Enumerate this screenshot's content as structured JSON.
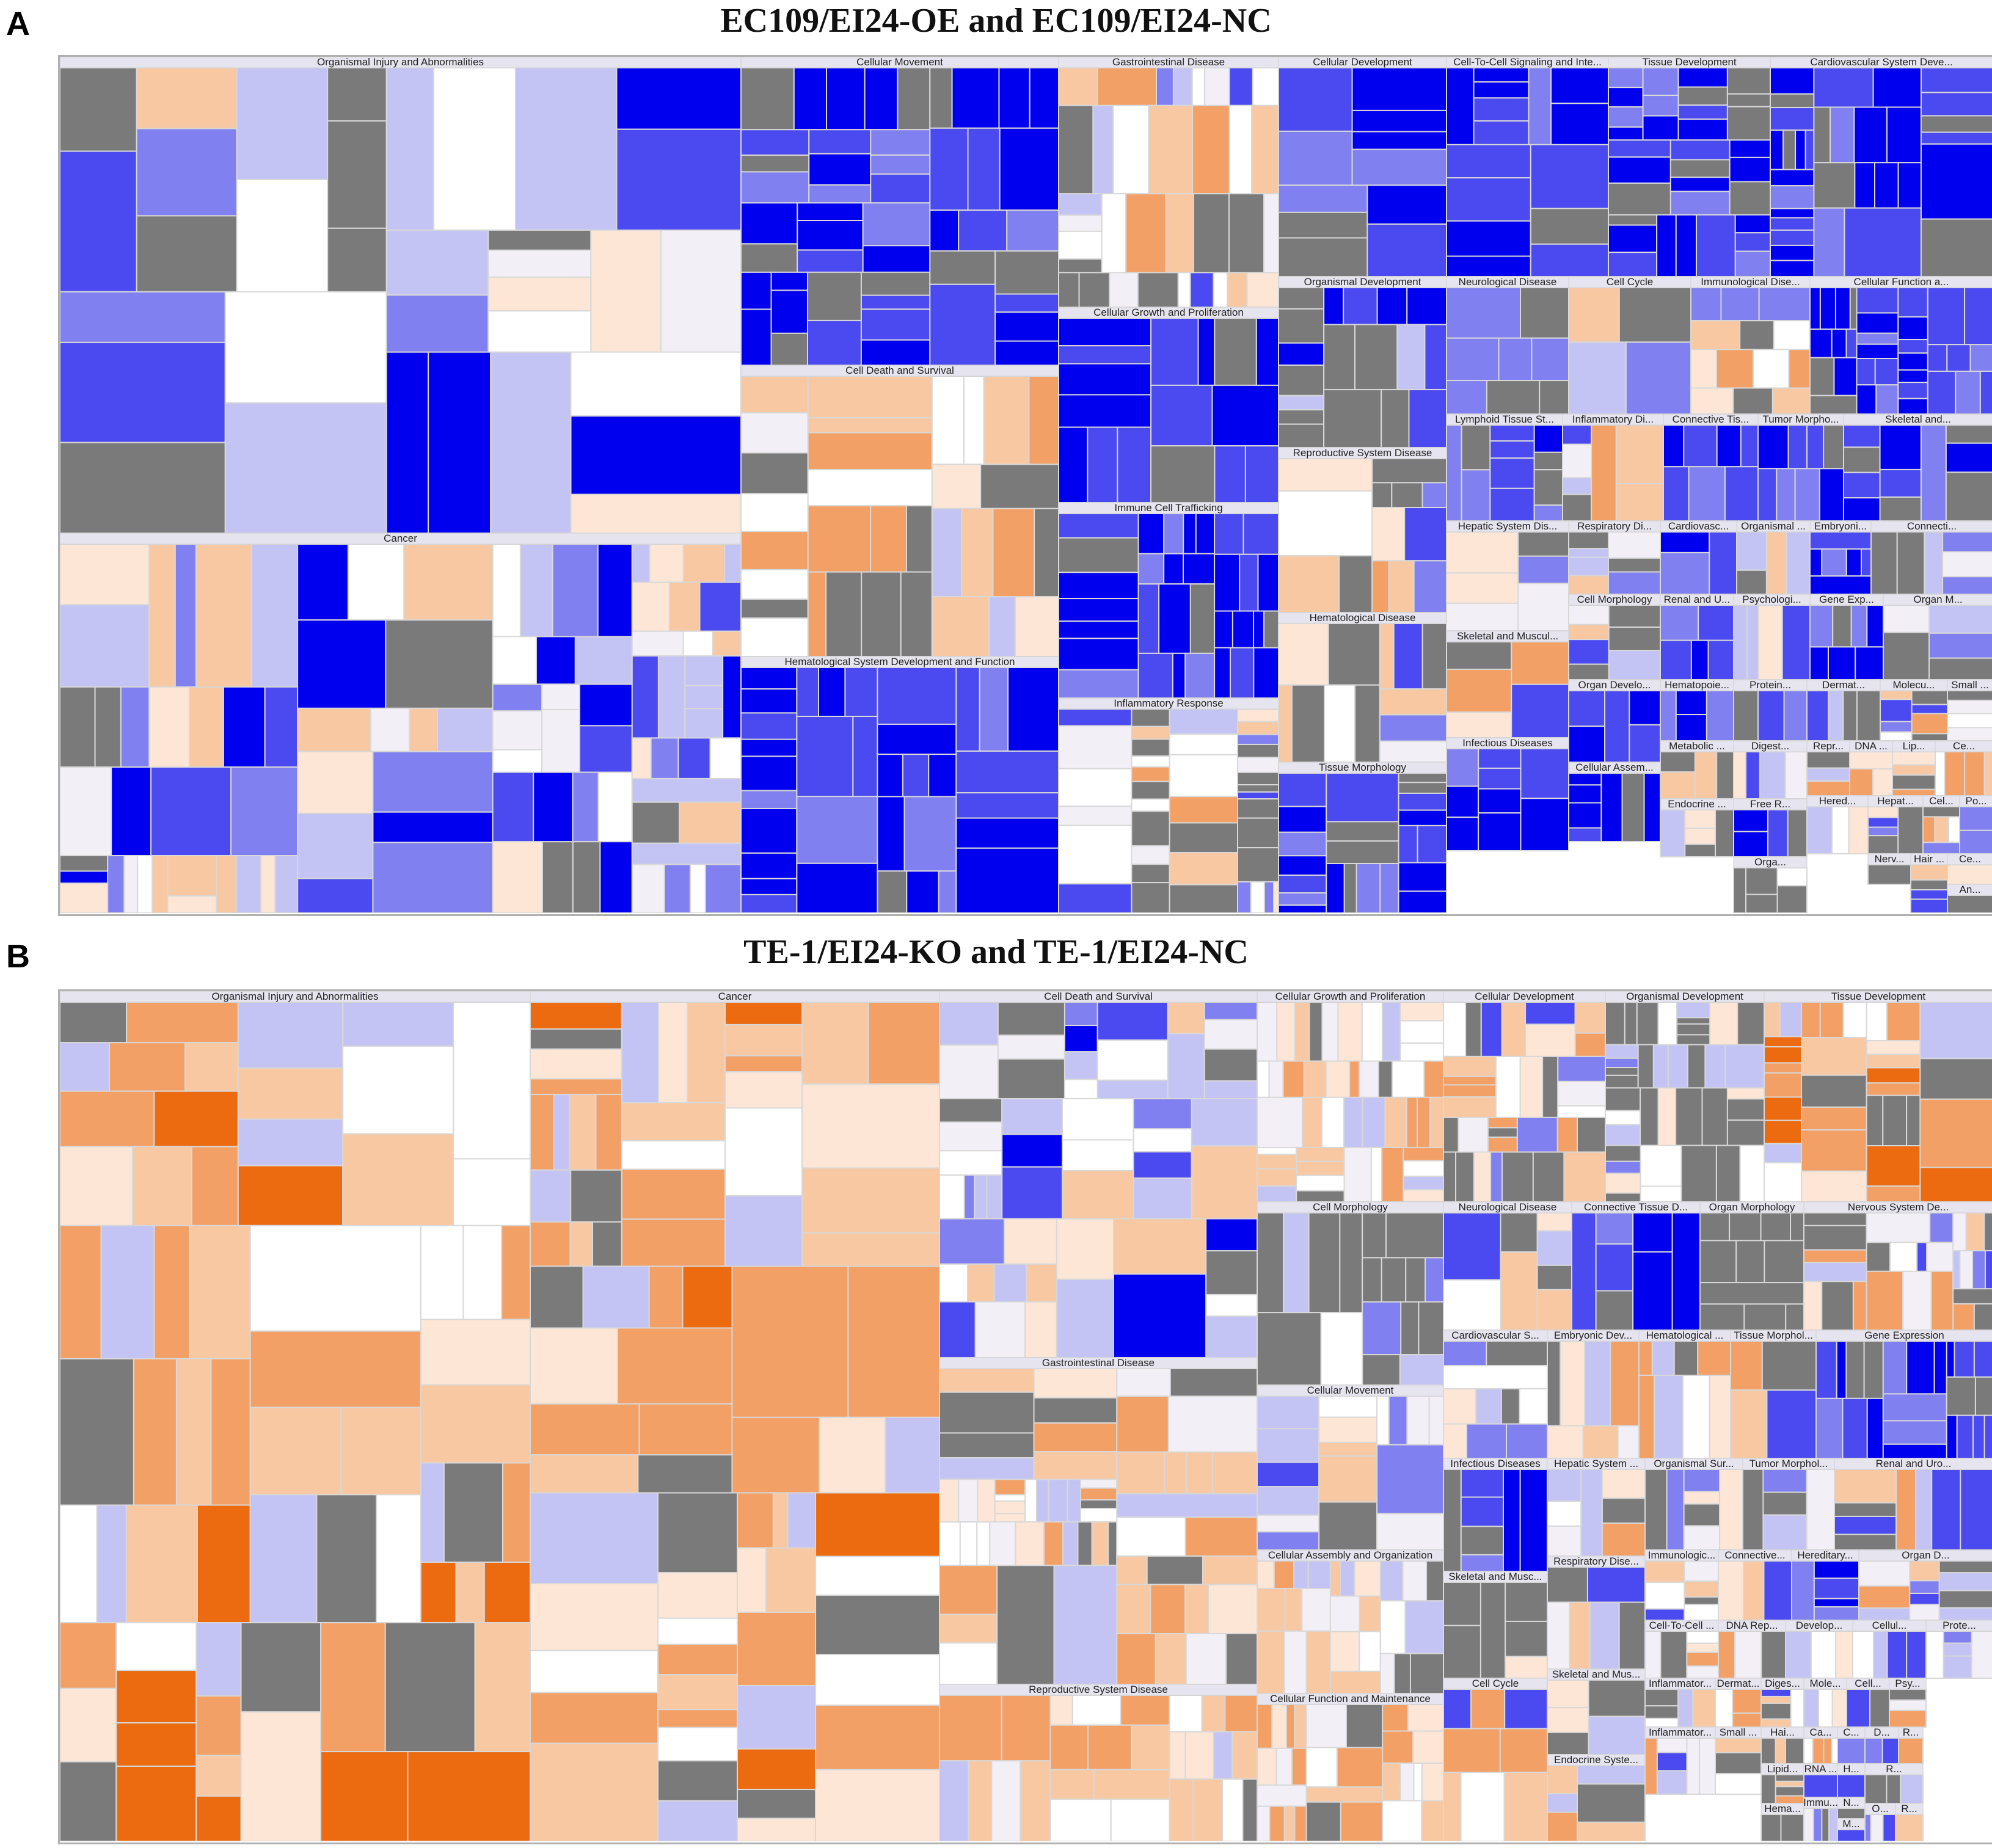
{
  "panels": [
    {
      "letter": "A",
      "title": "EC109/EI24-OE and EC109/EI24-NC"
    },
    {
      "letter": "B",
      "title": "TE-1/EI24-KO and TE-1/EI24-NC"
    }
  ],
  "palette": {
    "strong_blue": "#0000ee",
    "blue": "#4a4af0",
    "mid_blue": "#8080f0",
    "light_blue": "#c4c4f4",
    "pale": "#f2f0f6",
    "white": "#ffffff",
    "pale_orange": "#fde6d6",
    "light_orange": "#f8c8a2",
    "orange": "#f2a066",
    "strong_orange": "#ec6a10",
    "grey": "#7a7a7a"
  },
  "chart_data": [
    {
      "type": "treemap",
      "panel": "A",
      "title": "EC109/EI24-OE and EC109/EI24-NC",
      "categories": [
        {
          "label": "Organismal Injury and Abnormalities",
          "tone": "mixed-blue"
        },
        {
          "label": "Cancer",
          "tone": "mixed-blue"
        },
        {
          "label": "Cellular Movement",
          "tone": "blue"
        },
        {
          "label": "Cell Death and Survival",
          "tone": "mixed-orange"
        },
        {
          "label": "Hematological System Development and Function",
          "tone": "blue"
        },
        {
          "label": "Gastrointestinal Disease",
          "tone": "mixed"
        },
        {
          "label": "Cellular Growth and Proliferation",
          "tone": "blue"
        },
        {
          "label": "Immune Cell Trafficking",
          "tone": "blue"
        },
        {
          "label": "Inflammatory Response",
          "tone": "mixed"
        },
        {
          "label": "Cellular Development",
          "tone": "blue"
        },
        {
          "label": "Cell-To-Cell Signaling and Inte...",
          "tone": "blue"
        },
        {
          "label": "Tissue Development",
          "tone": "blue"
        },
        {
          "label": "Cardiovascular System Deve...",
          "tone": "blue"
        },
        {
          "label": "Organismal Development",
          "tone": "grey-blue"
        },
        {
          "label": "Reproductive System Disease",
          "tone": "mixed"
        },
        {
          "label": "Hematological Disease",
          "tone": "mixed"
        },
        {
          "label": "Tissue Morphology",
          "tone": "blue"
        },
        {
          "label": "Neurological Disease",
          "tone": "mixed"
        },
        {
          "label": "Cell Cycle",
          "tone": "mixed"
        },
        {
          "label": "Immunological Dise...",
          "tone": "mixed"
        },
        {
          "label": "Cellular Function a...",
          "tone": "blue"
        },
        {
          "label": "Lymphoid Tissue St...",
          "tone": "blue"
        },
        {
          "label": "Inflammatory Di...",
          "tone": "mixed"
        },
        {
          "label": "Connective Tis...",
          "tone": "blue"
        },
        {
          "label": "Tumor Morpho...",
          "tone": "blue"
        },
        {
          "label": "Skeletal and...",
          "tone": "blue"
        },
        {
          "label": "Hepatic System Dis...",
          "tone": "mixed"
        },
        {
          "label": "Respiratory Di...",
          "tone": "mixed"
        },
        {
          "label": "Cardiovasc...",
          "tone": "blue"
        },
        {
          "label": "Organismal ...",
          "tone": "orange"
        },
        {
          "label": "Embryoni...",
          "tone": "blue"
        },
        {
          "label": "Connecti...",
          "tone": "mixed"
        },
        {
          "label": "Skeletal and Muscul...",
          "tone": "mixed"
        },
        {
          "label": "Cell Morphology",
          "tone": "mixed"
        },
        {
          "label": "Renal and U...",
          "tone": "blue"
        },
        {
          "label": "Psychologi...",
          "tone": "mixed"
        },
        {
          "label": "Gene Exp...",
          "tone": "blue"
        },
        {
          "label": "Organ M...",
          "tone": "mixed"
        },
        {
          "label": "Organ Develo...",
          "tone": "blue"
        },
        {
          "label": "Hematopoie...",
          "tone": "blue"
        },
        {
          "label": "Protein...",
          "tone": "mixed"
        },
        {
          "label": "Dermat...",
          "tone": "mixed"
        },
        {
          "label": "Molecu...",
          "tone": "mixed"
        },
        {
          "label": "Small ...",
          "tone": "mixed"
        },
        {
          "label": "Infectious Diseases",
          "tone": "blue"
        },
        {
          "label": "Cellular Assem...",
          "tone": "blue"
        },
        {
          "label": "Metabolic ...",
          "tone": "mixed"
        },
        {
          "label": "Digest...",
          "tone": "mixed"
        },
        {
          "label": "Repr...",
          "tone": "mixed"
        },
        {
          "label": "DNA ...",
          "tone": "mixed"
        },
        {
          "label": "Lip...",
          "tone": "mixed"
        },
        {
          "label": "Ce...",
          "tone": "mixed"
        },
        {
          "label": "Endocrine ...",
          "tone": "mixed"
        },
        {
          "label": "Free R...",
          "tone": "blue"
        },
        {
          "label": "Hered...",
          "tone": "orange"
        },
        {
          "label": "Hepat...",
          "tone": "mixed"
        },
        {
          "label": "Cel...",
          "tone": "mixed"
        },
        {
          "label": "Po...",
          "tone": "mixed"
        },
        {
          "label": "Nerv...",
          "tone": "mixed"
        },
        {
          "label": "Orga...",
          "tone": "grey"
        },
        {
          "label": "Hair ...",
          "tone": "mixed"
        },
        {
          "label": "Ce...",
          "tone": "mixed"
        },
        {
          "label": "An...",
          "tone": "mixed"
        }
      ]
    },
    {
      "type": "treemap",
      "panel": "B",
      "title": "TE-1/EI24-KO and TE-1/EI24-NC",
      "categories": [
        {
          "label": "Organismal Injury and Abnormalities",
          "tone": "orange"
        },
        {
          "label": "Cancer",
          "tone": "orange"
        },
        {
          "label": "Cell Death and Survival",
          "tone": "mixed-blue"
        },
        {
          "label": "Gastrointestinal Disease",
          "tone": "mixed-orange"
        },
        {
          "label": "Reproductive System Disease",
          "tone": "mixed-orange"
        },
        {
          "label": "Cellular Growth and Proliferation",
          "tone": "mixed-orange"
        },
        {
          "label": "Cellular Development",
          "tone": "mixed"
        },
        {
          "label": "Organismal Development",
          "tone": "grey"
        },
        {
          "label": "Tissue Development",
          "tone": "orange"
        },
        {
          "label": "Cell Morphology",
          "tone": "grey"
        },
        {
          "label": "Neurological Disease",
          "tone": "mixed-blue"
        },
        {
          "label": "Connective Tissue D...",
          "tone": "blue"
        },
        {
          "label": "Organ Morphology",
          "tone": "grey"
        },
        {
          "label": "Nervous System De...",
          "tone": "mixed"
        },
        {
          "label": "Cellular Movement",
          "tone": "mixed-blue"
        },
        {
          "label": "Cardiovascular S...",
          "tone": "grey"
        },
        {
          "label": "Embryonic Dev...",
          "tone": "mixed"
        },
        {
          "label": "Hematological ...",
          "tone": "orange"
        },
        {
          "label": "Tissue Morphol...",
          "tone": "mixed"
        },
        {
          "label": "Gene Expression",
          "tone": "blue"
        },
        {
          "label": "Infectious Diseases",
          "tone": "blue"
        },
        {
          "label": "Hepatic System ...",
          "tone": "mixed"
        },
        {
          "label": "Organismal Sur...",
          "tone": "mixed"
        },
        {
          "label": "Tumor Morphol...",
          "tone": "mixed"
        },
        {
          "label": "Renal and Uro...",
          "tone": "mixed"
        },
        {
          "label": "Cellular Assembly and Organization",
          "tone": "mixed-orange"
        },
        {
          "label": "Respiratory Dise...",
          "tone": "mixed"
        },
        {
          "label": "Immunologic...",
          "tone": "mixed"
        },
        {
          "label": "Connective...",
          "tone": "mixed"
        },
        {
          "label": "Hereditary...",
          "tone": "blue"
        },
        {
          "label": "Organ D...",
          "tone": "mixed"
        },
        {
          "label": "Skeletal and Musc...",
          "tone": "grey"
        },
        {
          "label": "Cell-To-Cell ...",
          "tone": "mixed"
        },
        {
          "label": "DNA Rep...",
          "tone": "mixed"
        },
        {
          "label": "Develop...",
          "tone": "mixed"
        },
        {
          "label": "Cellul...",
          "tone": "mixed"
        },
        {
          "label": "Prote...",
          "tone": "mixed"
        },
        {
          "label": "Skeletal and Mus...",
          "tone": "grey"
        },
        {
          "label": "Cellular Function and Maintenance",
          "tone": "mixed-orange"
        },
        {
          "label": "Cell Cycle",
          "tone": "mixed"
        },
        {
          "label": "Endocrine Syste...",
          "tone": "mixed"
        },
        {
          "label": "Inflammator...",
          "tone": "mixed"
        },
        {
          "label": "Dermat...",
          "tone": "mixed"
        },
        {
          "label": "Diges...",
          "tone": "mixed"
        },
        {
          "label": "Mole...",
          "tone": "mixed"
        },
        {
          "label": "Cell...",
          "tone": "mixed"
        },
        {
          "label": "Psy...",
          "tone": "mixed"
        },
        {
          "label": "Hai...",
          "tone": "mixed"
        },
        {
          "label": "Ca...",
          "tone": "mixed"
        },
        {
          "label": "C...",
          "tone": "mixed"
        },
        {
          "label": "Lipid...",
          "tone": "mixed"
        },
        {
          "label": "RNA ...",
          "tone": "mixed"
        },
        {
          "label": "H...",
          "tone": "mixed"
        },
        {
          "label": "Inflammator...",
          "tone": "mixed"
        },
        {
          "label": "Small ...",
          "tone": "mixed"
        },
        {
          "label": "D...",
          "tone": "mixed"
        },
        {
          "label": "R...",
          "tone": "mixed"
        },
        {
          "label": "Hema...",
          "tone": "mixed"
        },
        {
          "label": "Immu...",
          "tone": "mixed"
        },
        {
          "label": "N...",
          "tone": "mixed"
        },
        {
          "label": "R...",
          "tone": "mixed"
        },
        {
          "label": "M...",
          "tone": "mixed"
        },
        {
          "label": "O...",
          "tone": "mixed"
        },
        {
          "label": "R...",
          "tone": "mixed"
        }
      ]
    }
  ]
}
